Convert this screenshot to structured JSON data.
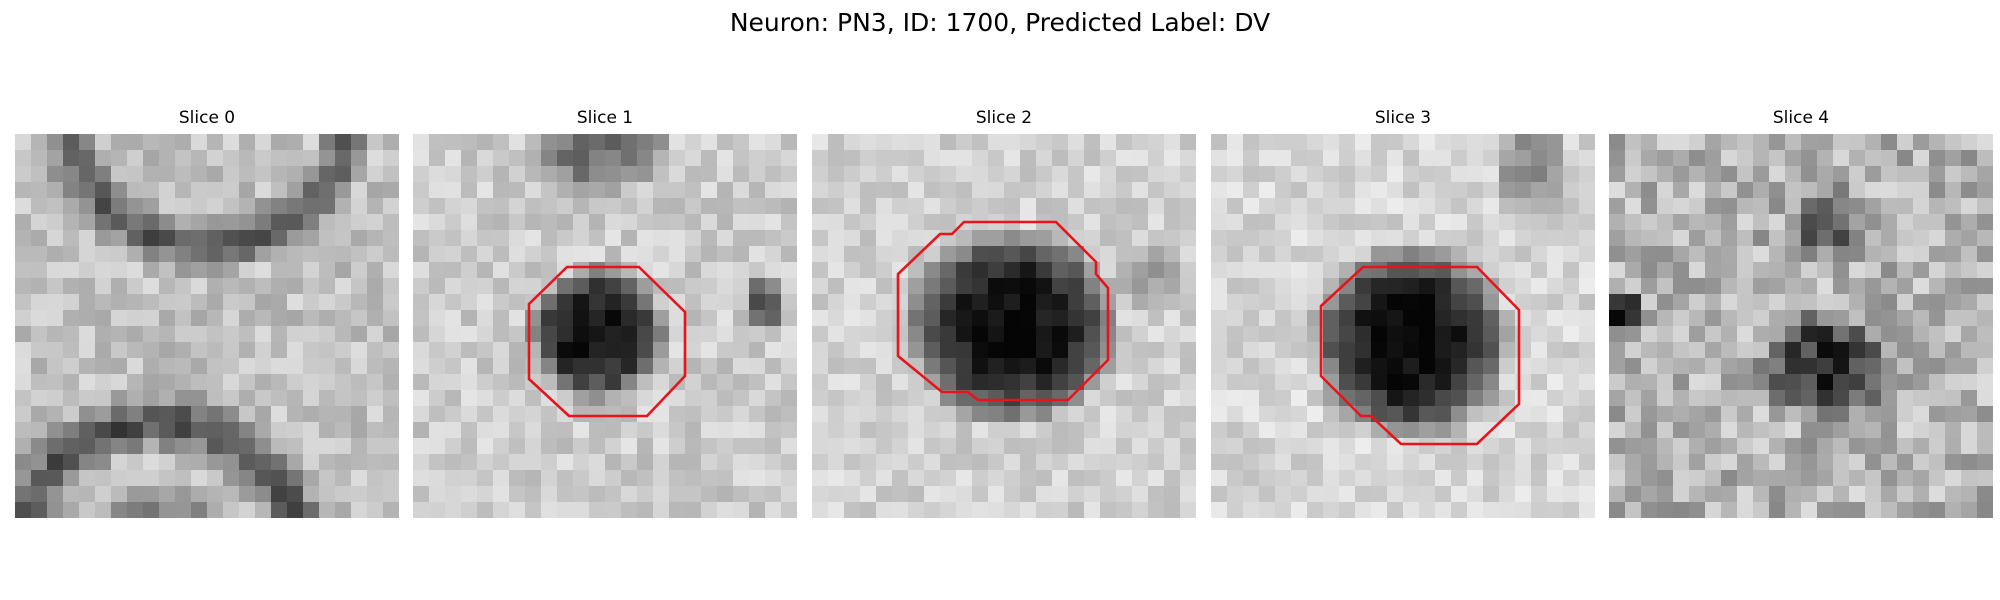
{
  "figure": {
    "title": "Neuron: PN3, ID: 1700, Predicted Label: DV"
  },
  "panels": [
    {
      "title": "Slice 0",
      "has_contour": false
    },
    {
      "title": "Slice 1",
      "has_contour": true
    },
    {
      "title": "Slice 2",
      "has_contour": true
    },
    {
      "title": "Slice 3",
      "has_contour": true
    },
    {
      "title": "Slice 4",
      "has_contour": false
    }
  ],
  "colors": {
    "contour": "#e8131b",
    "background": "#ffffff"
  },
  "colormap": "grayscale"
}
